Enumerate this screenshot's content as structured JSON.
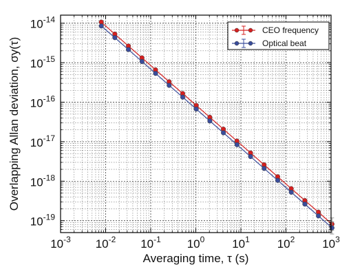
{
  "chart_data": {
    "type": "line",
    "title": "",
    "xlabel": "Averaging time, τ (s)",
    "ylabel": "Overlapping Allan deviation, σy(τ)",
    "xscale": "log",
    "yscale": "log",
    "xlim": [
      0.001,
      1000
    ],
    "ylim": [
      5e-20,
      1.6e-14
    ],
    "x_ticks": [
      {
        "value": 0.001,
        "base": "10",
        "exp": "-3"
      },
      {
        "value": 0.01,
        "base": "10",
        "exp": "-2"
      },
      {
        "value": 0.1,
        "base": "10",
        "exp": "-1"
      },
      {
        "value": 1,
        "base": "10",
        "exp": "0"
      },
      {
        "value": 10,
        "base": "10",
        "exp": "1"
      },
      {
        "value": 100,
        "base": "10",
        "exp": "2"
      },
      {
        "value": 1000,
        "base": "10",
        "exp": "3"
      }
    ],
    "y_ticks": [
      {
        "value": 1e-19,
        "base": "10",
        "exp": "-19"
      },
      {
        "value": 1e-18,
        "base": "10",
        "exp": "-18"
      },
      {
        "value": 1e-17,
        "base": "10",
        "exp": "-17"
      },
      {
        "value": 1e-16,
        "base": "10",
        "exp": "-16"
      },
      {
        "value": 1e-15,
        "base": "10",
        "exp": "-15"
      },
      {
        "value": 1e-14,
        "base": "10",
        "exp": "-14"
      }
    ],
    "grid": true,
    "legend_position": "top-right",
    "x": [
      0.008,
      0.016,
      0.032,
      0.064,
      0.128,
      0.256,
      0.512,
      1.024,
      2.048,
      4.096,
      8.192,
      16.384,
      32.768,
      65.536,
      131.072,
      262.144,
      524.288,
      1048.576
    ],
    "series": [
      {
        "name": "CEO frequency",
        "color": "#d62020",
        "values": [
          1.07e-14,
          5.3e-15,
          2.65e-15,
          1.33e-15,
          6.6e-16,
          3.3e-16,
          1.66e-16,
          8.3e-17,
          4.15e-17,
          2.08e-17,
          1.04e-17,
          5.2e-18,
          2.6e-18,
          1.3e-18,
          6.5e-19,
          3.25e-19,
          1.65e-19,
          8.2e-20
        ]
      },
      {
        "name": "Optical beat",
        "color": "#3a4d9c",
        "values": [
          8.5e-15,
          4.3e-15,
          2.15e-15,
          1.07e-15,
          5.35e-16,
          2.67e-16,
          1.34e-16,
          6.7e-17,
          3.35e-17,
          1.68e-17,
          8.4e-18,
          4.2e-18,
          2.1e-18,
          1.05e-18,
          5.25e-19,
          2.63e-19,
          1.32e-19,
          6.6e-20
        ]
      }
    ]
  }
}
